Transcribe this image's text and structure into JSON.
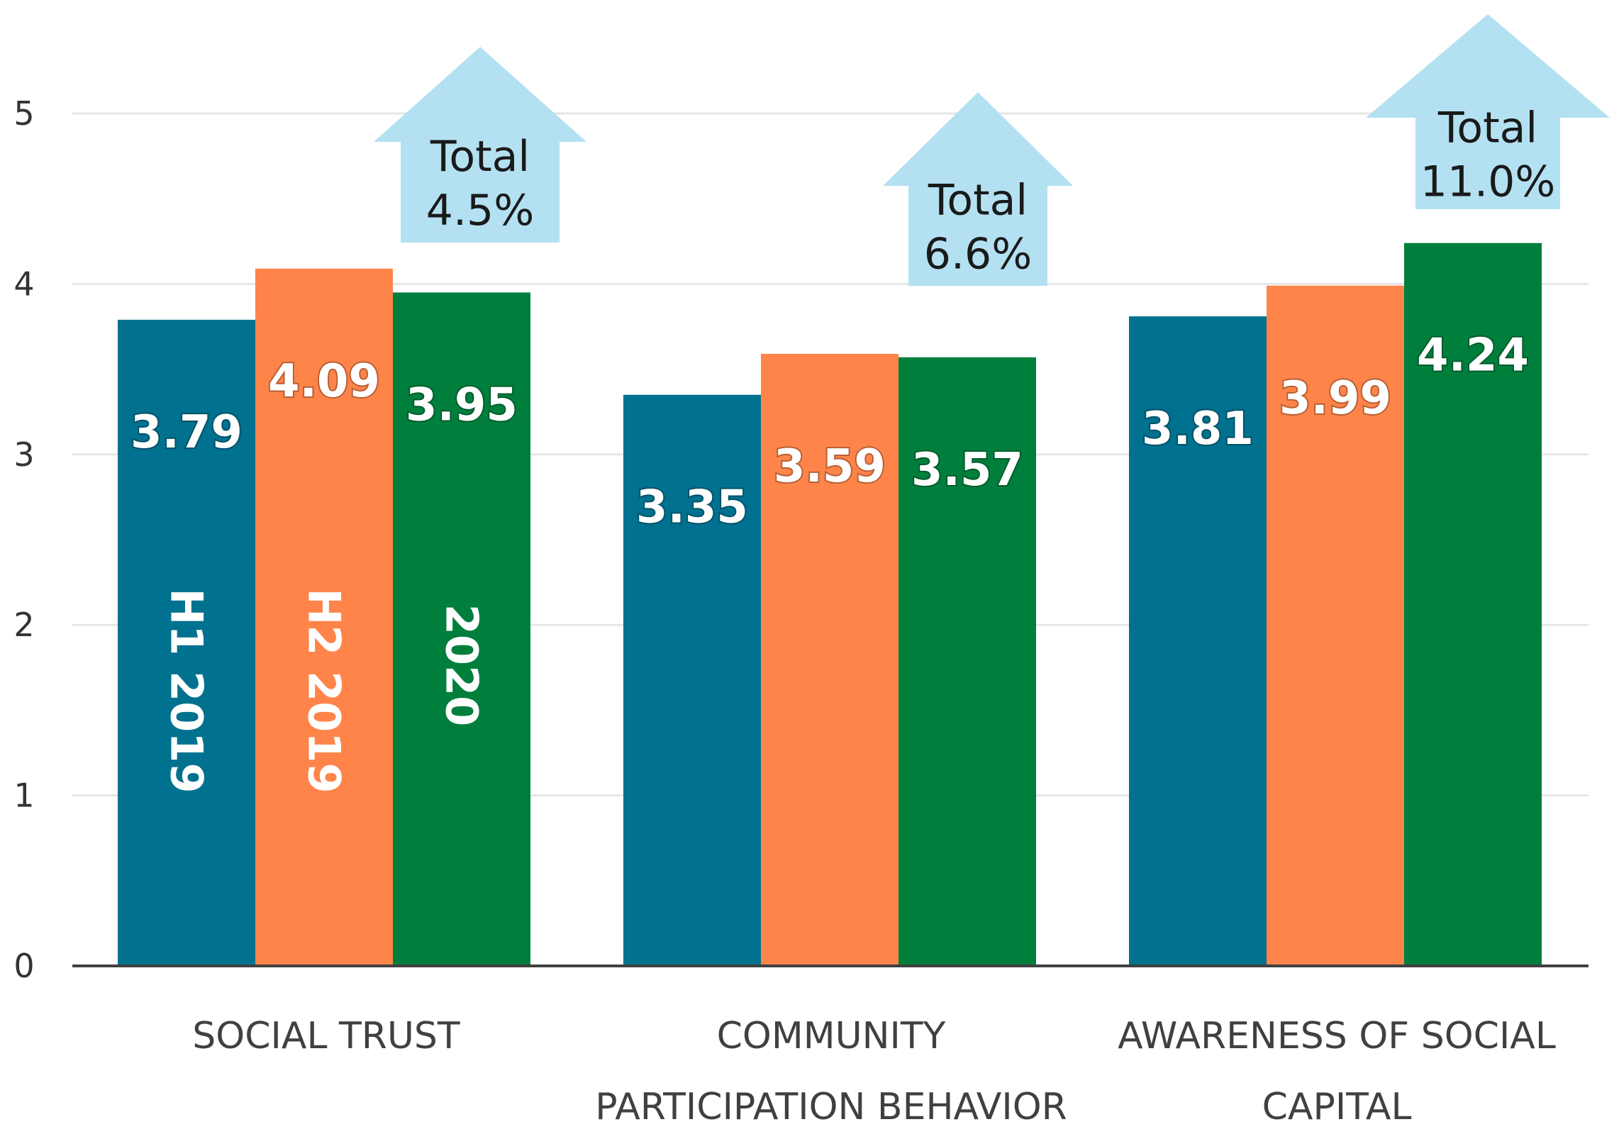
{
  "chart_data": {
    "type": "bar",
    "title": "",
    "xlabel": "",
    "ylabel": "",
    "ylim": [
      0,
      5
    ],
    "yticks": [
      0,
      1,
      2,
      3,
      4,
      5
    ],
    "grid": true,
    "categories": [
      [
        "SOCIAL TRUST"
      ],
      [
        "COMMUNITY",
        "PARTICIPATION BEHAVIOR"
      ],
      [
        "AWARENESS OF SOCIAL",
        "CAPITAL"
      ]
    ],
    "series": [
      {
        "name": "H1 2019",
        "color": "#00718f",
        "values": [
          3.79,
          3.35,
          3.81
        ],
        "labels": [
          "3.79",
          "3.35",
          "3.81"
        ]
      },
      {
        "name": "H2 2019",
        "color": "#fe8449",
        "values": [
          4.09,
          3.59,
          3.99
        ],
        "labels": [
          "4.09",
          "3.59",
          "3.99"
        ]
      },
      {
        "name": "2020",
        "color": "#007f3c",
        "values": [
          3.95,
          3.57,
          4.24
        ],
        "labels": [
          "3.95",
          "3.57",
          "4.24"
        ]
      }
    ],
    "annotations": [
      {
        "line1": "Total",
        "line2": "4.5%"
      },
      {
        "line1": "Total",
        "line2": "6.6%"
      },
      {
        "line1": "Total",
        "line2": "11.0%"
      }
    ],
    "arrow_color": "#b3e1f2"
  }
}
